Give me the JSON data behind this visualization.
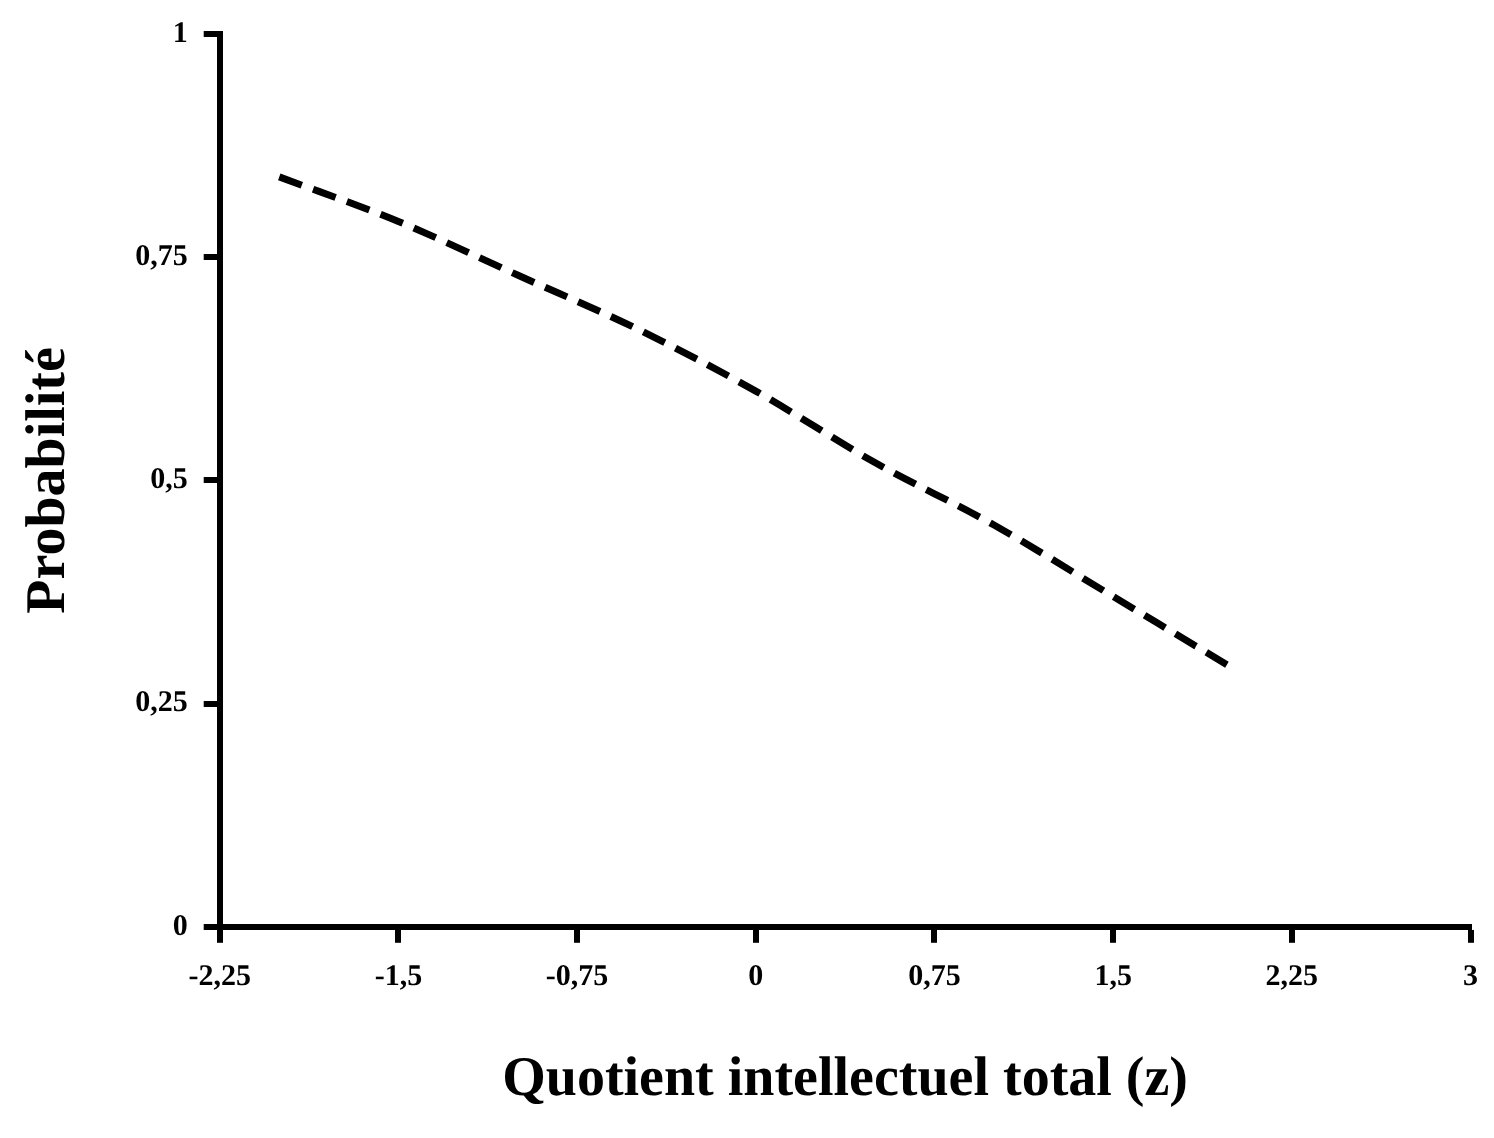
{
  "chart_data": {
    "type": "line",
    "xlabel": "Quotient intellectuel total (z)",
    "ylabel": "Probabilité",
    "x": [
      -2,
      -1.5,
      -1,
      -0.5,
      0,
      0.5,
      1,
      1.5,
      2
    ],
    "series": [
      {
        "color": "#000000",
        "values": [
          0.84,
          0.79,
          0.73,
          0.67,
          0.6,
          0.52,
          0.45,
          0.37,
          0.29
        ]
      }
    ],
    "xlim": [
      -2.25,
      3
    ],
    "ylim": [
      0,
      1
    ],
    "xticks": [
      {
        "value": -2.25,
        "label": "-2,25"
      },
      {
        "value": -1.5,
        "label": "-1,5"
      },
      {
        "value": -0.75,
        "label": "-0,75"
      },
      0,
      {
        "value": 0.75,
        "label": "0,75"
      },
      {
        "value": 1.5,
        "label": "1,5"
      },
      {
        "value": 2.25,
        "label": "2,25"
      },
      3
    ],
    "yticks": [
      0,
      {
        "value": 0.25,
        "label": "0,25"
      },
      {
        "value": 0.5,
        "label": "0,5"
      },
      {
        "value": 0.75,
        "label": "0,75"
      },
      1
    ],
    "line_style": "dashed",
    "marker": "none"
  }
}
